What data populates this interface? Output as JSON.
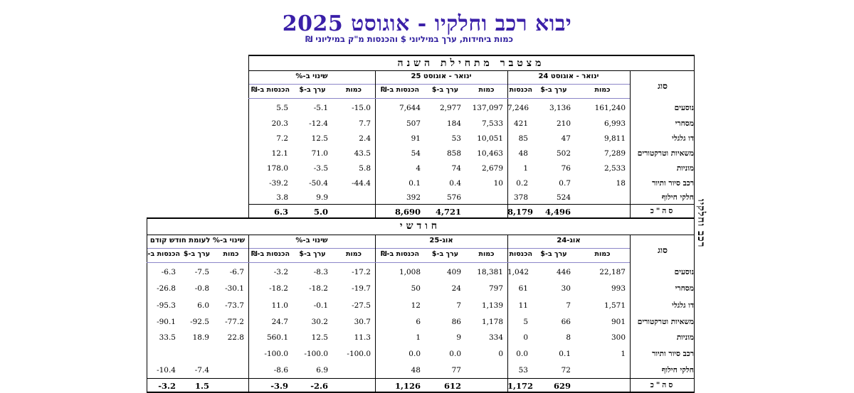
{
  "title": "יבוא רכב וחלקיו - אוגוסט 2025",
  "subtitle": "כמות ביחידות, ערך במיליוני $ והכנסות מ\"ק במיליוני ₪",
  "side_label": "רכב וחלקיו",
  "cumulative": {
    "section_title": "מצטבר מתחילת השנה",
    "sug_label": "סוג",
    "groups": [
      "ינואר - אוגוסט 24",
      "ינואר - אוגוסט 25",
      "שינוי ב-%"
    ],
    "col_headers": [
      "כמות",
      "ערך ב-$",
      "הכנסות ב-₪",
      "כמות",
      "ערך ב-$",
      "הכנסות ב-₪",
      "כמות",
      "ערך ב-$",
      "הכנסות ב-₪"
    ],
    "rows": [
      {
        "label": "נוסעים",
        "values": [
          "161,240",
          "3,136",
          "7,246",
          "137,097",
          "2,977",
          "7,644",
          "-15.0",
          "-5.1",
          "5.5"
        ]
      },
      {
        "label": "מסחרי",
        "values": [
          "6,993",
          "210",
          "421",
          "7,533",
          "184",
          "507",
          "7.7",
          "-12.4",
          "20.3"
        ]
      },
      {
        "label": "דו גלגלי",
        "values": [
          "9,811",
          "47",
          "85",
          "10,051",
          "53",
          "91",
          "2.4",
          "12.5",
          "7.2"
        ]
      },
      {
        "label": "משאיות וטרקטורים",
        "values": [
          "7,289",
          "502",
          "48",
          "10,463",
          "858",
          "54",
          "43.5",
          "71.0",
          "12.1"
        ]
      },
      {
        "label": "מוניות",
        "values": [
          "2,533",
          "76",
          "1",
          "2,679",
          "74",
          "4",
          "5.8",
          "-3.5",
          "178.0"
        ]
      },
      {
        "label": "רכב סיור ותיור",
        "values": [
          "18",
          "0.7",
          "0.2",
          "10",
          "0.4",
          "0.1",
          "-44.4",
          "-50.4",
          "-39.2"
        ]
      },
      {
        "label": "חלקי חילוף",
        "values": [
          "",
          "524",
          "378",
          "",
          "576",
          "392",
          "",
          "9.9",
          "3.8"
        ]
      }
    ],
    "total": {
      "label": "סה\"כ",
      "values": [
        "",
        "4,496",
        "8,179",
        "",
        "4,721",
        "8,690",
        "",
        "5.0",
        "6.3"
      ]
    }
  },
  "monthly": {
    "section_title": "חודשי",
    "sug_label": "סוג",
    "groups": [
      "אוג-24",
      "אוג-25",
      "שינוי ב-%",
      "שינוי ב-% לעומת חודש קודם"
    ],
    "col_headers": [
      "כמות",
      "ערך ב-$",
      "הכנסות ב-₪",
      "כמות",
      "ערך ב-$",
      "הכנסות ב-₪",
      "כמות",
      "ערך ב-$",
      "הכנסות ב-₪",
      "כמות",
      "ערך ב-$",
      "הכנסות ב-₪"
    ],
    "rows": [
      {
        "label": "נוסעים",
        "values": [
          "22,187",
          "446",
          "1,042",
          "18,381",
          "409",
          "1,008",
          "-17.2",
          "-8.3",
          "-3.2",
          "-6.7",
          "-7.5",
          "-6.3"
        ]
      },
      {
        "label": "מסחרי",
        "values": [
          "993",
          "30",
          "61",
          "797",
          "24",
          "50",
          "-19.7",
          "-18.2",
          "-18.2",
          "-30.1",
          "-0.8",
          "-26.8"
        ]
      },
      {
        "label": "דו גלגלי",
        "values": [
          "1,571",
          "7",
          "11",
          "1,139",
          "7",
          "12",
          "-27.5",
          "-0.1",
          "11.0",
          "-73.7",
          "6.0",
          "-95.3"
        ]
      },
      {
        "label": "משאיות וטרקטורים",
        "values": [
          "901",
          "66",
          "5",
          "1,178",
          "86",
          "6",
          "30.7",
          "30.2",
          "24.7",
          "-77.2",
          "-92.5",
          "-90.1"
        ]
      },
      {
        "label": "מוניות",
        "values": [
          "300",
          "8",
          "0",
          "334",
          "9",
          "1",
          "11.3",
          "12.5",
          "560.1",
          "22.8",
          "18.9",
          "33.5"
        ]
      },
      {
        "label": "רכב סיור ותיור",
        "values": [
          "1",
          "0.1",
          "0.0",
          "0",
          "0.0",
          "0.0",
          "-100.0",
          "-100.0",
          "-100.0",
          "",
          "",
          ""
        ]
      },
      {
        "label": "חלקי חילוף",
        "values": [
          "",
          "72",
          "53",
          "",
          "77",
          "48",
          "",
          "6.9",
          "-8.6",
          "",
          "-7.4",
          "-10.4"
        ]
      }
    ],
    "total": {
      "label": "סה\"כ",
      "values": [
        "",
        "629",
        "1,172",
        "",
        "612",
        "1,126",
        "",
        "-2.6",
        "-3.9",
        "",
        "1.5",
        "-3.2"
      ]
    }
  }
}
